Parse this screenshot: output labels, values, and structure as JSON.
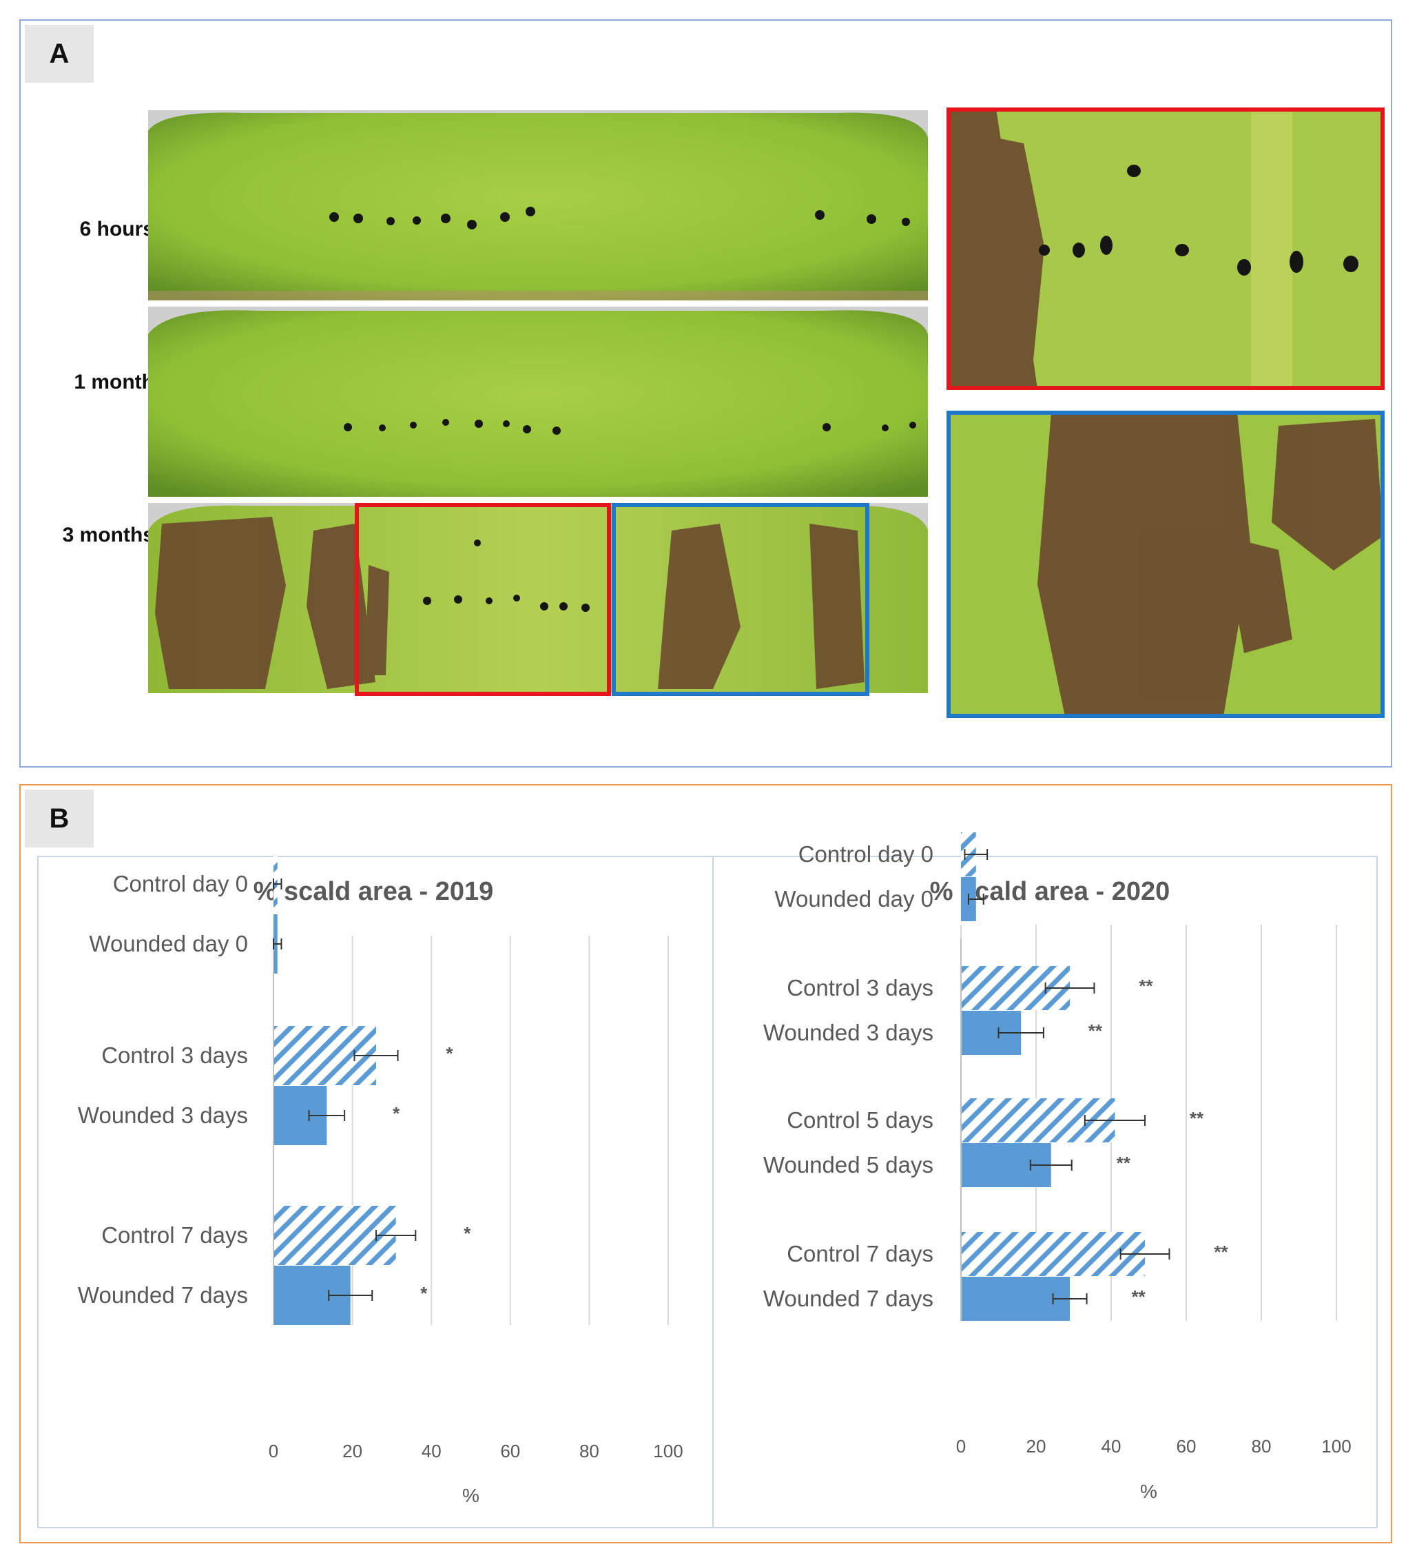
{
  "panel_a": {
    "letter": "A",
    "rows": [
      {
        "label": "6 hours"
      },
      {
        "label": "1 month"
      },
      {
        "label": "3 months"
      }
    ],
    "colors": {
      "frame_red": "#e8141c",
      "frame_blue": "#1f78c8",
      "panel_border": "#8eaadb",
      "apple_green": "#93c23a",
      "scald_brown": "#6b4a2e"
    }
  },
  "panel_b": {
    "letter": "B",
    "colors": {
      "bar": "#5b9bd5",
      "border": "#ed9a55",
      "grid": "#d9d9d9"
    }
  },
  "chart_data": [
    {
      "type": "bar",
      "orientation": "horizontal",
      "title": "% scald area - 2019",
      "xlabel": "%",
      "xlim": [
        0,
        100
      ],
      "xticks": [
        0,
        20,
        40,
        60,
        80,
        100
      ],
      "grid": true,
      "bars": [
        {
          "label": "Control day 0",
          "value": 1,
          "error": 1,
          "pattern": "hatched",
          "sig": "",
          "group": 0
        },
        {
          "label": "Wounded day 0",
          "value": 1,
          "error": 1,
          "pattern": "solid",
          "sig": "",
          "group": 0
        },
        {
          "label": "Control 3 days",
          "value": 26,
          "error": 5.5,
          "pattern": "hatched",
          "sig": "*",
          "group": 1
        },
        {
          "label": "Wounded 3 days",
          "value": 13.5,
          "error": 4.5,
          "pattern": "solid",
          "sig": "*",
          "group": 1
        },
        {
          "label": "Control 7 days",
          "value": 31,
          "error": 5,
          "pattern": "hatched",
          "sig": "*",
          "group": 2
        },
        {
          "label": "Wounded 7 days",
          "value": 19.5,
          "error": 5.5,
          "pattern": "solid",
          "sig": "*",
          "group": 2
        }
      ]
    },
    {
      "type": "bar",
      "orientation": "horizontal",
      "title": "% scald area - 2020",
      "xlabel": "%",
      "xlim": [
        0,
        100
      ],
      "xticks": [
        0,
        20,
        40,
        60,
        80,
        100
      ],
      "grid": true,
      "bars": [
        {
          "label": "Control day 0",
          "value": 4,
          "error": 3,
          "pattern": "hatched",
          "sig": "",
          "group": 0
        },
        {
          "label": "Wounded day 0",
          "value": 4,
          "error": 2,
          "pattern": "solid",
          "sig": "",
          "group": 0
        },
        {
          "label": "Control 3 days",
          "value": 29,
          "error": 6.5,
          "pattern": "hatched",
          "sig": "**",
          "group": 1
        },
        {
          "label": "Wounded 3 days",
          "value": 16,
          "error": 6,
          "pattern": "solid",
          "sig": "**",
          "group": 1
        },
        {
          "label": "Control 5 days",
          "value": 41,
          "error": 8,
          "pattern": "hatched",
          "sig": "**",
          "group": 2
        },
        {
          "label": "Wounded 5 days",
          "value": 24,
          "error": 5.5,
          "pattern": "solid",
          "sig": "**",
          "group": 2
        },
        {
          "label": "Control 7 days",
          "value": 49,
          "error": 6.5,
          "pattern": "hatched",
          "sig": "**",
          "group": 3
        },
        {
          "label": "Wounded 7 days",
          "value": 29,
          "error": 4.5,
          "pattern": "solid",
          "sig": "**",
          "group": 3
        }
      ]
    }
  ]
}
